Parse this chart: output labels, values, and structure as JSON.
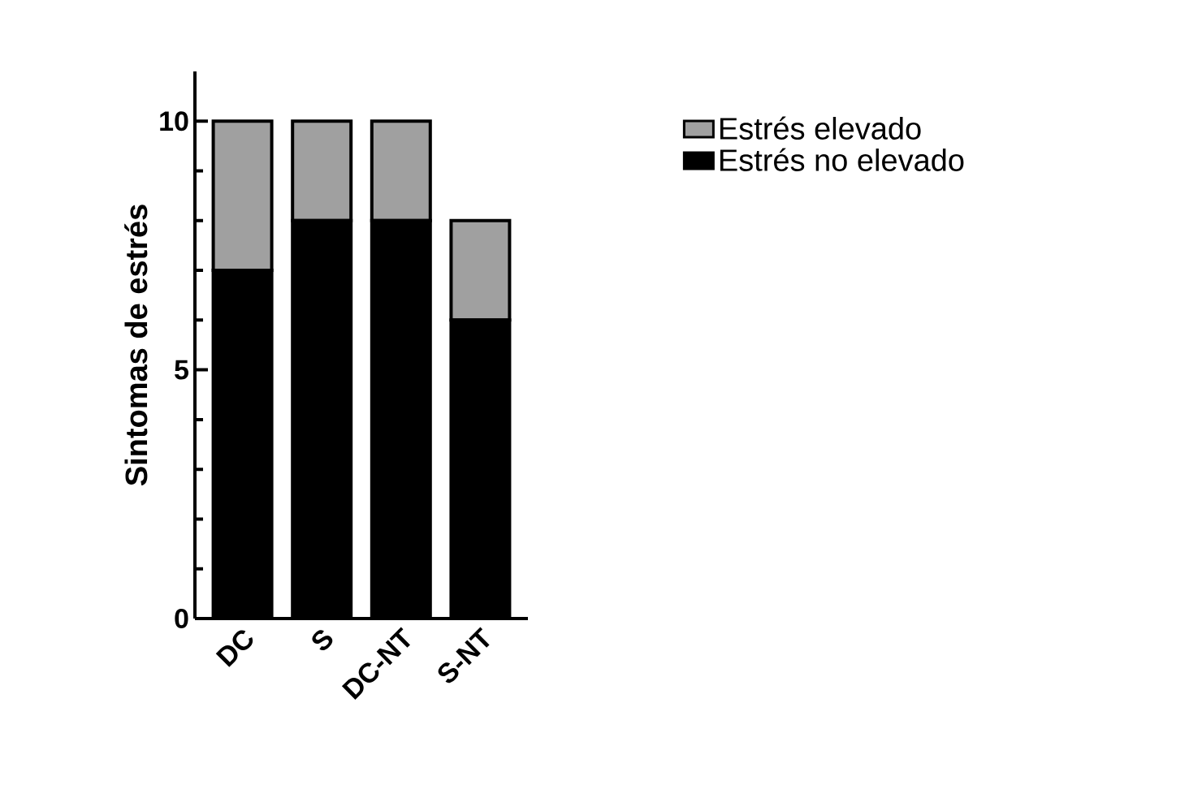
{
  "chart_data": {
    "type": "bar",
    "stacked": true,
    "ylabel": "Sintomas de estrés",
    "categories": [
      "DC",
      "S",
      "DC-NT",
      "S-NT"
    ],
    "series": [
      {
        "name": "Estrés no elevado",
        "color": "#000000",
        "values": [
          7,
          8,
          8,
          6
        ]
      },
      {
        "name": "Estrés elevado",
        "color": "#a0a0a0",
        "values": [
          3,
          2,
          2,
          2
        ]
      }
    ],
    "ylim": [
      0,
      11
    ],
    "yticks": [
      0,
      5,
      10
    ],
    "grid": false,
    "legend": "right"
  }
}
